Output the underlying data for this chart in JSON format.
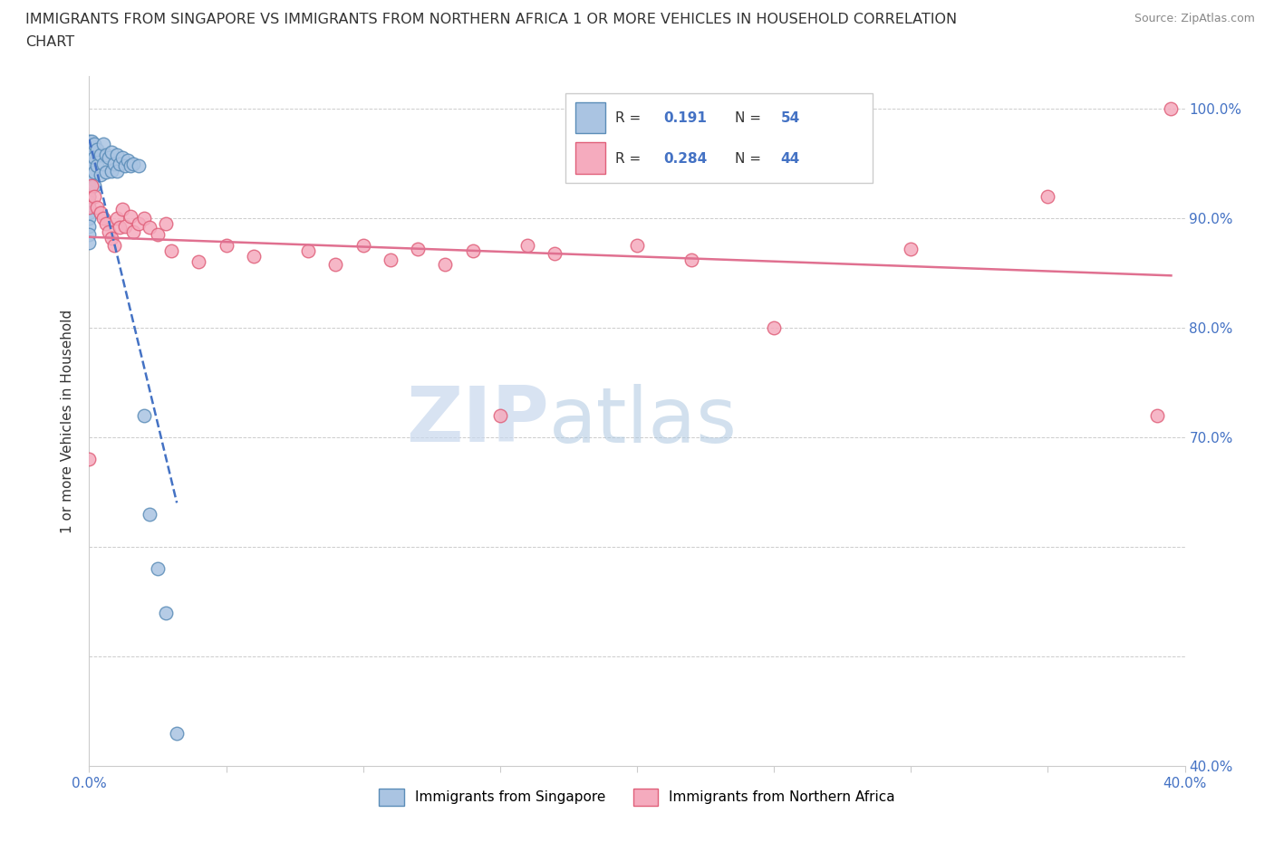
{
  "title_line1": "IMMIGRANTS FROM SINGAPORE VS IMMIGRANTS FROM NORTHERN AFRICA 1 OR MORE VEHICLES IN HOUSEHOLD CORRELATION",
  "title_line2": "CHART",
  "source_text": "Source: ZipAtlas.com",
  "ylabel": "1 or more Vehicles in Household",
  "xlim": [
    0.0,
    0.4
  ],
  "ylim": [
    0.4,
    1.03
  ],
  "singapore_color": "#aac4e2",
  "northern_africa_color": "#f5abbe",
  "singapore_edge_color": "#5b8db8",
  "northern_africa_edge_color": "#e0607a",
  "trend_singapore_color": "#4472c4",
  "trend_africa_color": "#e07090",
  "R_singapore": 0.191,
  "N_singapore": 54,
  "R_africa": 0.284,
  "N_africa": 44,
  "watermark_ZIP": "ZIP",
  "watermark_atlas": "atlas",
  "sg_x": [
    0.0,
    0.0,
    0.0,
    0.0,
    0.0,
    0.0,
    0.0,
    0.0,
    0.0,
    0.0,
    0.0,
    0.0,
    0.0,
    0.0,
    0.0,
    0.0,
    0.0,
    0.0,
    0.0,
    0.0,
    0.001,
    0.001,
    0.001,
    0.001,
    0.002,
    0.002,
    0.002,
    0.002,
    0.003,
    0.003,
    0.004,
    0.004,
    0.005,
    0.005,
    0.006,
    0.006,
    0.007,
    0.008,
    0.008,
    0.009,
    0.01,
    0.01,
    0.011,
    0.012,
    0.013,
    0.014,
    0.015,
    0.016,
    0.018,
    0.02,
    0.022,
    0.025,
    0.028,
    0.032
  ],
  "sg_y": [
    0.97,
    0.968,
    0.965,
    0.962,
    0.958,
    0.955,
    0.95,
    0.945,
    0.94,
    0.935,
    0.93,
    0.925,
    0.92,
    0.915,
    0.91,
    0.905,
    0.9,
    0.893,
    0.885,
    0.878,
    0.97,
    0.96,
    0.95,
    0.94,
    0.968,
    0.955,
    0.942,
    0.93,
    0.963,
    0.948,
    0.958,
    0.94,
    0.968,
    0.95,
    0.958,
    0.942,
    0.955,
    0.96,
    0.943,
    0.95,
    0.958,
    0.943,
    0.95,
    0.955,
    0.948,
    0.953,
    0.948,
    0.95,
    0.948,
    0.72,
    0.63,
    0.58,
    0.54,
    0.43
  ],
  "af_x": [
    0.0,
    0.0,
    0.0,
    0.001,
    0.002,
    0.003,
    0.004,
    0.005,
    0.006,
    0.007,
    0.008,
    0.009,
    0.01,
    0.011,
    0.012,
    0.013,
    0.015,
    0.016,
    0.018,
    0.02,
    0.022,
    0.025,
    0.028,
    0.03,
    0.04,
    0.05,
    0.06,
    0.08,
    0.09,
    0.1,
    0.11,
    0.12,
    0.13,
    0.14,
    0.15,
    0.16,
    0.17,
    0.2,
    0.22,
    0.25,
    0.3,
    0.35,
    0.39,
    0.395
  ],
  "af_y": [
    0.92,
    0.91,
    0.68,
    0.93,
    0.92,
    0.91,
    0.905,
    0.9,
    0.895,
    0.888,
    0.882,
    0.875,
    0.9,
    0.892,
    0.908,
    0.893,
    0.902,
    0.888,
    0.895,
    0.9,
    0.892,
    0.885,
    0.895,
    0.87,
    0.86,
    0.875,
    0.865,
    0.87,
    0.858,
    0.875,
    0.862,
    0.872,
    0.858,
    0.87,
    0.72,
    0.875,
    0.868,
    0.875,
    0.862,
    0.8,
    0.872,
    0.92,
    0.72,
    1.0
  ]
}
